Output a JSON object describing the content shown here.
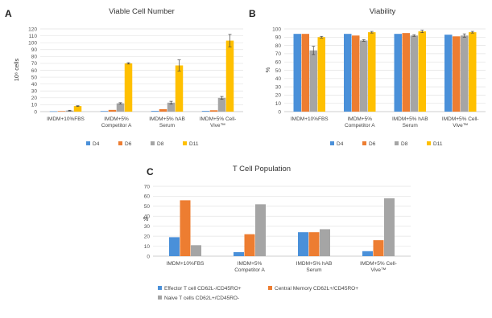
{
  "chart_data": [
    {
      "panel": "A",
      "type": "bar",
      "title": "Viable Cell Number",
      "ylabel": "10⁶ cells",
      "ylim": [
        0,
        120
      ],
      "yticks": [
        0,
        10,
        20,
        30,
        40,
        50,
        60,
        70,
        80,
        90,
        100,
        110,
        120
      ],
      "grid": true,
      "legend": "bottom",
      "categories": [
        [
          "IMDM+10%FBS"
        ],
        [
          "IMDM+5%",
          "Competitor A"
        ],
        [
          "IMDM+5% hAB",
          "Serum"
        ],
        [
          "IMDM+5% Cell-",
          "Vive™"
        ]
      ],
      "series": [
        {
          "name": "D4",
          "color": "#4a90d9",
          "values": [
            0.5,
            0.8,
            1.0,
            1.0
          ]
        },
        {
          "name": "D6",
          "color": "#ed7d31",
          "values": [
            0.8,
            2.5,
            3.5,
            2.0
          ]
        },
        {
          "name": "D8",
          "color": "#a5a5a5",
          "values": [
            1.5,
            12.0,
            13.0,
            20.0
          ]
        },
        {
          "name": "D11",
          "color": "#ffc000",
          "values": [
            8.0,
            70.0,
            67.0,
            103.0
          ]
        }
      ],
      "errors": {
        "D8": [
          0.5,
          1.0,
          2.0,
          2.0
        ],
        "D11": [
          0.5,
          1.0,
          8.0,
          9.0
        ]
      }
    },
    {
      "panel": "B",
      "type": "bar",
      "title": "Viability",
      "ylabel": "%",
      "ylim": [
        0,
        100
      ],
      "yticks": [
        0,
        10,
        20,
        30,
        40,
        50,
        60,
        70,
        80,
        90,
        100
      ],
      "grid": true,
      "legend": "bottom",
      "categories": [
        [
          "IMDM+10%FBS"
        ],
        [
          "IMDM+5%",
          "Competitor A"
        ],
        [
          "IMDM+5% hAB",
          "Serum"
        ],
        [
          "IMDM+5% Cell-",
          "Vive™"
        ]
      ],
      "series": [
        {
          "name": "D4",
          "color": "#4a90d9",
          "values": [
            94,
            94,
            94,
            93
          ]
        },
        {
          "name": "D6",
          "color": "#ed7d31",
          "values": [
            94,
            92,
            95,
            91
          ]
        },
        {
          "name": "D8",
          "color": "#a5a5a5",
          "values": [
            74,
            86,
            92,
            92
          ]
        },
        {
          "name": "D11",
          "color": "#ffc000",
          "values": [
            90,
            96,
            97,
            96
          ]
        }
      ],
      "errors": {
        "D8": [
          5,
          1,
          1,
          2
        ],
        "D11": [
          1,
          1,
          1.5,
          1
        ]
      }
    },
    {
      "panel": "C",
      "type": "bar",
      "title": "T Cell Population",
      "ylabel": "%",
      "ylim": [
        0,
        70
      ],
      "yticks": [
        0,
        10,
        20,
        30,
        40,
        50,
        60,
        70
      ],
      "grid": true,
      "legend": "bottom",
      "categories": [
        [
          "IMDM+10%FBS"
        ],
        [
          "IMDM+5%",
          "Competitor A"
        ],
        [
          "IMDM+5% hAB",
          "Serum"
        ],
        [
          "IMDM+5% Cell-",
          "Vive™"
        ]
      ],
      "series": [
        {
          "name": "Effector T cell CD62L-/CD45RO+",
          "color": "#4a90d9",
          "values": [
            19,
            4,
            24,
            5
          ]
        },
        {
          "name": "Central Memory CD62L+/CD45RO+",
          "color": "#ed7d31",
          "values": [
            56,
            22,
            24,
            16
          ]
        },
        {
          "name": "Naive T cells CD62L+/CD45RO-",
          "color": "#a5a5a5",
          "values": [
            11,
            52,
            27,
            58
          ]
        }
      ]
    }
  ]
}
